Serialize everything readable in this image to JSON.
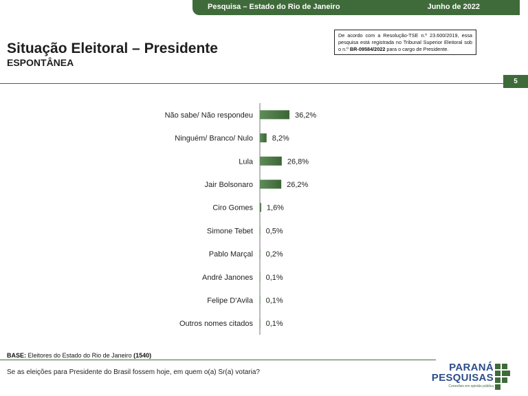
{
  "header": {
    "survey": "Pesquisa – Estado do Rio de Janeiro",
    "date": "Junho de 2022"
  },
  "title": "Situação Eleitoral – Presidente",
  "subtitle": "ESPONTÂNEA",
  "notice": {
    "before": "De acordo com a Resolução-TSE n.º 23.600/2019, essa pesquisa está registrada no Tribunal Superior Eleitoral sob o n.º ",
    "registration": "BR-09584/2022",
    "after": " para o cargo de Presidente."
  },
  "page_number": "5",
  "base": {
    "label": "BASE:",
    "text": " Eleitores do Estado do Rio de Janeiro ",
    "count": "(1540)"
  },
  "question": "Se as eleições para Presidente do Brasil fossem hoje, em quem o(a) Sr(a) votaria?",
  "logo": {
    "line1": "PARANÁ",
    "line2": "PESQUISAS",
    "tagline": "Conexões em opinião pública"
  },
  "colors": {
    "accent": "#3f6b3a",
    "bar": "#4a7a45",
    "logo_blue": "#2e4d8a"
  },
  "chart_data": {
    "type": "bar",
    "orientation": "horizontal",
    "categories": [
      "Não sabe/ Não respondeu",
      "Ninguém/ Branco/ Nulo",
      "Lula",
      "Jair Bolsonaro",
      "Ciro Gomes",
      "Simone Tebet",
      "Pablo Marçal",
      "André Janones",
      "Felipe D'Avila",
      "Outros nomes citados"
    ],
    "values": [
      36.2,
      8.2,
      26.8,
      26.2,
      1.6,
      0.5,
      0.2,
      0.1,
      0.1,
      0.1
    ],
    "value_labels": [
      "36,2%",
      "8,2%",
      "26,8%",
      "26,2%",
      "1,6%",
      "0,5%",
      "0,2%",
      "0,1%",
      "0,1%",
      "0,1%"
    ],
    "title": "",
    "xlabel": "",
    "ylabel": "",
    "grid": false
  }
}
